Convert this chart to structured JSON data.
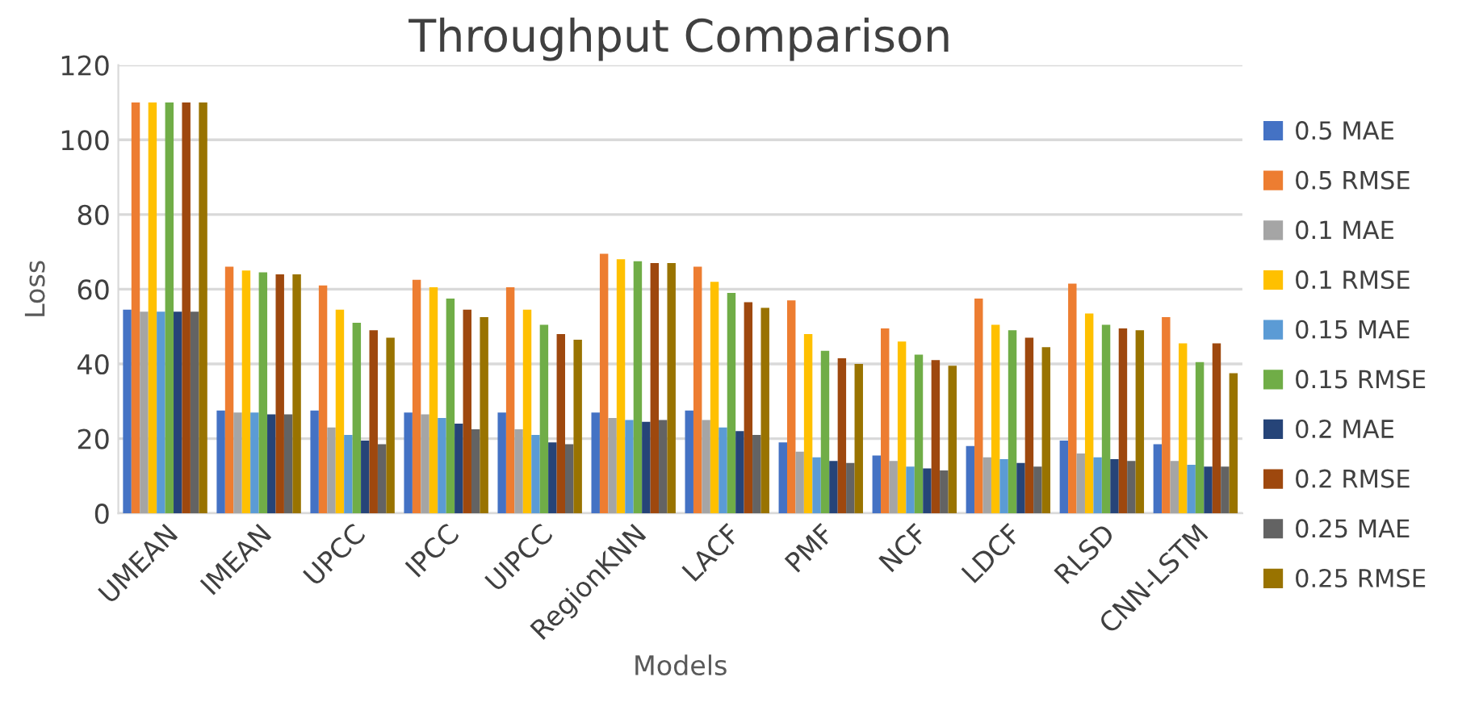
{
  "chart_data": {
    "type": "bar",
    "title": "Throughput Comparison",
    "xlabel": "Models",
    "ylabel": "Loss",
    "categories": [
      "UMEAN",
      "IMEAN",
      "UPCC",
      "IPCC",
      "UIPCC",
      "RegionKNN",
      "LACF",
      "PMF",
      "NCF",
      "LDCF",
      "RLSD",
      "CNN-LSTM"
    ],
    "series": [
      {
        "name": "0.5 MAE",
        "color": "#4472c4",
        "values": [
          54.5,
          27.5,
          27.5,
          27,
          27,
          27,
          27.5,
          19,
          15.5,
          18,
          19.5,
          18.5
        ]
      },
      {
        "name": "0.5 RMSE",
        "color": "#ed7d31",
        "values": [
          110,
          66,
          61,
          62.5,
          60.5,
          69.5,
          66,
          57,
          49.5,
          57.5,
          61.5,
          52.5
        ]
      },
      {
        "name": "0.1 MAE",
        "color": "#a5a5a5",
        "values": [
          54,
          27,
          23,
          26.5,
          22.5,
          25.5,
          25,
          16.5,
          14,
          15,
          16,
          14
        ]
      },
      {
        "name": "0.1 RMSE",
        "color": "#ffc000",
        "values": [
          110,
          65,
          54.5,
          60.5,
          54.5,
          68,
          62,
          48,
          46,
          50.5,
          53.5,
          45.5
        ]
      },
      {
        "name": "0.15 MAE",
        "color": "#5b9bd5",
        "values": [
          54,
          27,
          21,
          25.5,
          21,
          25,
          23,
          15,
          12.5,
          14.5,
          15,
          13
        ]
      },
      {
        "name": "0.15 RMSE",
        "color": "#70ad47",
        "values": [
          110,
          64.5,
          51,
          57.5,
          50.5,
          67.5,
          59,
          43.5,
          42.5,
          49,
          50.5,
          40.5
        ]
      },
      {
        "name": "0.2 MAE",
        "color": "#264478",
        "values": [
          54,
          26.5,
          19.5,
          24,
          19,
          24.5,
          22,
          14,
          12,
          13.5,
          14.5,
          12.5
        ]
      },
      {
        "name": "0.2 RMSE",
        "color": "#9e480e",
        "values": [
          110,
          64,
          49,
          54.5,
          48,
          67,
          56.5,
          41.5,
          41,
          47,
          49.5,
          45.5
        ]
      },
      {
        "name": "0.25 MAE",
        "color": "#636363",
        "values": [
          54,
          26.5,
          18.5,
          22.5,
          18.5,
          25,
          21,
          13.5,
          11.5,
          12.5,
          14,
          12.5
        ]
      },
      {
        "name": "0.25 RMSE",
        "color": "#997300",
        "values": [
          110,
          64,
          47,
          52.5,
          46.5,
          67,
          55,
          40,
          39.5,
          44.5,
          49,
          37.5
        ]
      }
    ],
    "ylim": [
      0,
      120
    ],
    "yticks": [
      0,
      20,
      40,
      60,
      80,
      100,
      120
    ],
    "grid": "y",
    "legend": "right"
  }
}
